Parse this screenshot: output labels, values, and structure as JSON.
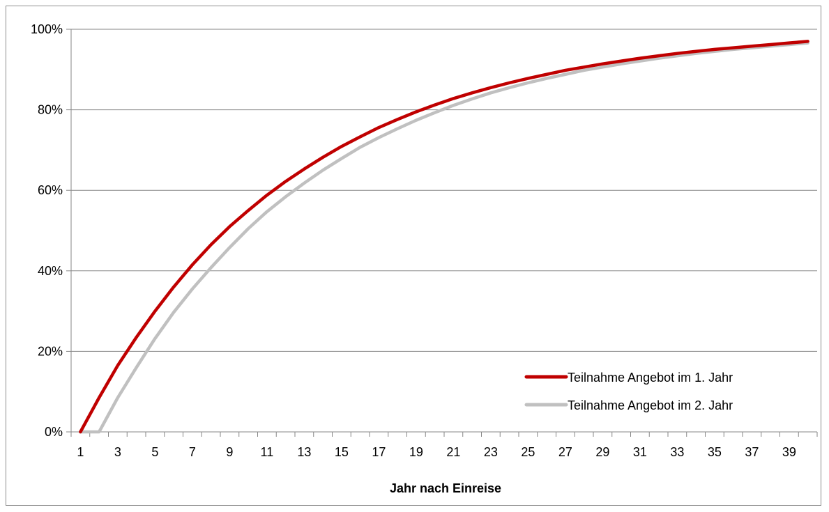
{
  "chart_data": {
    "type": "line",
    "title": "",
    "xlabel": "Jahr nach Einreise",
    "ylabel": "",
    "x_range": [
      1,
      40
    ],
    "ylim": [
      0,
      1
    ],
    "y_ticks": [
      {
        "value": 0,
        "label": "0%"
      },
      {
        "value": 0.2,
        "label": "20%"
      },
      {
        "value": 0.4,
        "label": "40%"
      },
      {
        "value": 0.6,
        "label": "60%"
      },
      {
        "value": 0.8,
        "label": "80%"
      },
      {
        "value": 1.0,
        "label": "100%"
      }
    ],
    "x_tick_labels": [
      1,
      3,
      5,
      7,
      9,
      11,
      13,
      15,
      17,
      19,
      21,
      23,
      25,
      27,
      29,
      31,
      33,
      35,
      37,
      39
    ],
    "grid": "horizontal",
    "legend_position": "bottom-right",
    "x": [
      1,
      2,
      3,
      4,
      5,
      6,
      7,
      8,
      9,
      10,
      11,
      12,
      13,
      14,
      15,
      16,
      17,
      18,
      19,
      20,
      21,
      22,
      23,
      24,
      25,
      26,
      27,
      28,
      29,
      30,
      31,
      32,
      33,
      34,
      35,
      36,
      37,
      38,
      39,
      40
    ],
    "series": [
      {
        "name": "Teilnahme Angebot im 1. Jahr",
        "color": "#c00000",
        "values": [
          0,
          0.085,
          0.165,
          0.235,
          0.3,
          0.36,
          0.415,
          0.465,
          0.51,
          0.55,
          0.588,
          0.622,
          0.653,
          0.682,
          0.709,
          0.733,
          0.756,
          0.776,
          0.795,
          0.812,
          0.828,
          0.842,
          0.855,
          0.867,
          0.878,
          0.888,
          0.898,
          0.906,
          0.914,
          0.921,
          0.928,
          0.934,
          0.94,
          0.945,
          0.95,
          0.954,
          0.958,
          0.962,
          0.966,
          0.97
        ]
      },
      {
        "name": "Teilnahme Angebot im 2. Jahr",
        "color": "#c0c0c0",
        "values": [
          0,
          0,
          0.085,
          0.16,
          0.232,
          0.297,
          0.355,
          0.408,
          0.458,
          0.505,
          0.547,
          0.584,
          0.618,
          0.65,
          0.679,
          0.707,
          0.731,
          0.753,
          0.774,
          0.793,
          0.811,
          0.827,
          0.842,
          0.855,
          0.867,
          0.878,
          0.888,
          0.898,
          0.906,
          0.914,
          0.921,
          0.928,
          0.934,
          0.94,
          0.945,
          0.95,
          0.954,
          0.958,
          0.962,
          0.966
        ]
      }
    ]
  }
}
